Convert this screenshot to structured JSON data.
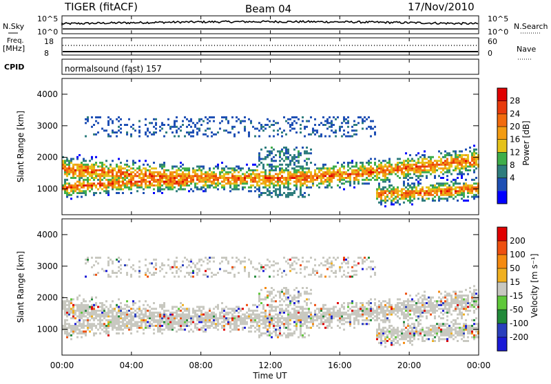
{
  "header": {
    "title": "TIGER (fitACF)",
    "beam": "Beam 04",
    "date": "17/Nov/2010"
  },
  "top_panels": {
    "nsky_label": "N.Sky",
    "nsky_ticks": [
      "10^5",
      "10^0"
    ],
    "nsearch_label": "N.Search",
    "nsearch_ticks": [
      "10^5",
      "10^0"
    ],
    "freq_label": "Freq.",
    "freq_unit": "[MHz]",
    "freq_ticks": [
      "18",
      "8"
    ],
    "nave_label": "Nave",
    "nave_ticks": [
      "60",
      "0"
    ],
    "cpid_label": "CPID",
    "cpid_text": "normalsound (fast) 157"
  },
  "chart_data": [
    {
      "type": "heatmap",
      "name": "power",
      "ylabel": "Slant Range [km]",
      "yticks": [
        "4000",
        "3000",
        "2000",
        "1000"
      ],
      "ylim": [
        180,
        4500
      ],
      "colorbar_label": "Power [dB]",
      "colorbar_ticks": [
        "28",
        "24",
        "20",
        "16",
        "12",
        "8",
        "4"
      ],
      "colors": [
        "#0000ff",
        "#1e4fb4",
        "#2e7d7d",
        "#3fae4a",
        "#e5c21a",
        "#f39c12",
        "#f26b0d",
        "#e83a0c",
        "#e00000"
      ]
    },
    {
      "type": "heatmap",
      "name": "velocity",
      "ylabel": "Slant Range [km]",
      "yticks": [
        "4000",
        "3000",
        "2000",
        "1000"
      ],
      "ylim": [
        180,
        4500
      ],
      "colorbar_label": "Velocity [m s⁻¹]",
      "colorbar_ticks": [
        "200",
        "100",
        "50",
        "15",
        "-15",
        "-50",
        "-100",
        "-200"
      ],
      "colors": [
        "#1a1ad6",
        "#2a3fbd",
        "#228a3a",
        "#5fc83a",
        "#c8c8c0",
        "#f0b020",
        "#f58a10",
        "#ee5010",
        "#e00000"
      ],
      "xlabel": "Time UT",
      "xticks": [
        "00:00",
        "04:00",
        "08:00",
        "12:00",
        "16:00",
        "20:00",
        "00:00"
      ],
      "xlim": [
        0,
        24
      ]
    }
  ]
}
